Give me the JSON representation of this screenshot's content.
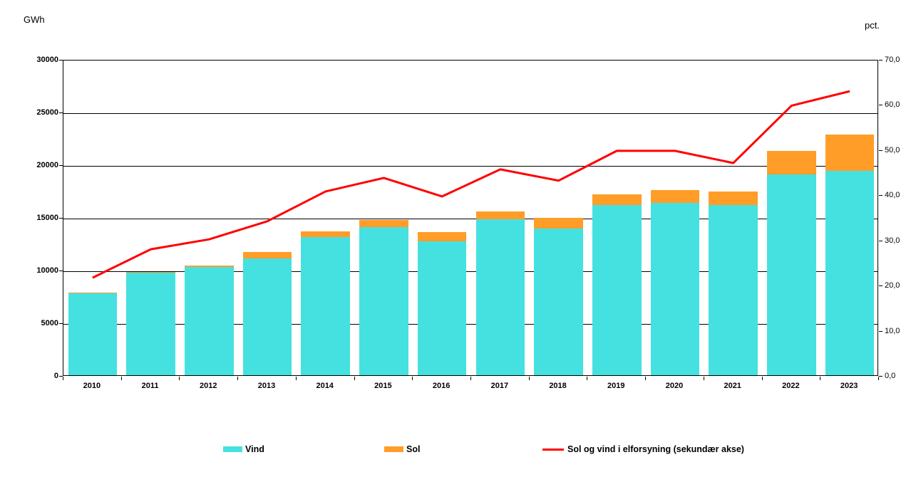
{
  "chart_data": {
    "type": "bar",
    "subtype": "stacked-bar-with-secondary-axis-line",
    "title": "",
    "grid": "horizontal",
    "legend_position": "bottom",
    "categories": [
      "2010",
      "2011",
      "2012",
      "2013",
      "2014",
      "2015",
      "2016",
      "2017",
      "2018",
      "2019",
      "2020",
      "2021",
      "2022",
      "2023"
    ],
    "series": [
      {
        "name": "Vind",
        "type": "bar",
        "axis": "left",
        "color": "#45E1E1",
        "values": [
          7800,
          9750,
          10270,
          11100,
          13100,
          14050,
          12700,
          14800,
          13900,
          16150,
          16350,
          16150,
          19050,
          19400
        ]
      },
      {
        "name": "Sol",
        "type": "bar",
        "axis": "left",
        "color": "#FF9D28",
        "values": [
          10,
          20,
          130,
          600,
          550,
          680,
          870,
          750,
          1020,
          1010,
          1220,
          1280,
          2230,
          3470
        ]
      },
      {
        "name": "Sol og vind i elforsyning (sekundær akse)",
        "type": "line",
        "axis": "right",
        "color": "#FF0000",
        "values": [
          21.9,
          28.2,
          30.4,
          34.4,
          41.0,
          44.0,
          39.9,
          45.9,
          43.4,
          50.0,
          50.0,
          47.3,
          60.0,
          63.2
        ]
      }
    ],
    "left_axis": {
      "unit": "GWh",
      "min": 0,
      "max": 30000,
      "tick_step": 5000,
      "tick_labels": [
        "30000",
        "25000",
        "20000",
        "15000",
        "10000",
        "5000",
        "0"
      ]
    },
    "right_axis": {
      "unit": "pct.",
      "min": 0,
      "max": 70,
      "tick_step": 10,
      "tick_labels": [
        "70,0",
        "60,0",
        "50,0",
        "40,0",
        "30,0",
        "20,0",
        "10,0",
        "0,0"
      ]
    }
  }
}
